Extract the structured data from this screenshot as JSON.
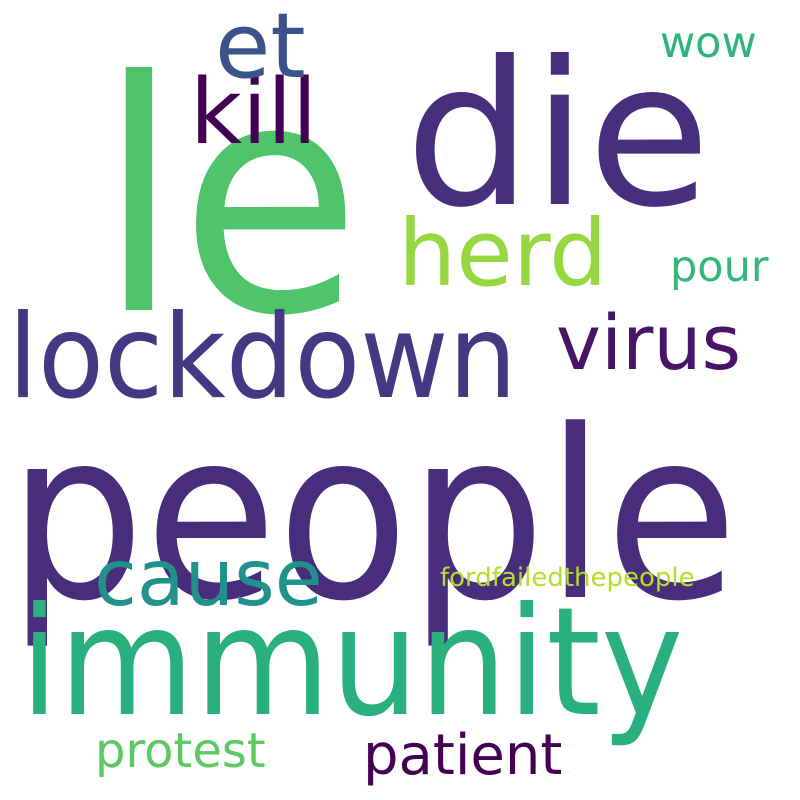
{
  "words": [
    {
      "id": "people",
      "text": "people",
      "color": "#472d7b"
    },
    {
      "id": "le",
      "text": "le",
      "color": "#4fc46a"
    },
    {
      "id": "die",
      "text": "die",
      "color": "#46307e"
    },
    {
      "id": "immunity",
      "text": "immunity",
      "color": "#2ab07f"
    },
    {
      "id": "lockdown",
      "text": "lockdown",
      "color": "#453781"
    },
    {
      "id": "herd",
      "text": "herd",
      "color": "#95d840"
    },
    {
      "id": "kill",
      "text": "kill",
      "color": "#440154"
    },
    {
      "id": "virus",
      "text": "virus",
      "color": "#481467"
    },
    {
      "id": "cause",
      "text": "cause",
      "color": "#21918c"
    },
    {
      "id": "et",
      "text": "et",
      "color": "#3b528b"
    },
    {
      "id": "patient",
      "text": "patient",
      "color": "#440154"
    },
    {
      "id": "protest",
      "text": "protest",
      "color": "#5ec962"
    },
    {
      "id": "pour",
      "text": "pour",
      "color": "#35b779"
    },
    {
      "id": "wow",
      "text": "wow",
      "color": "#2fb47c"
    },
    {
      "id": "fordfailedthepeople",
      "text": "fordfailedthepeople",
      "color": "#b5de2b"
    }
  ]
}
